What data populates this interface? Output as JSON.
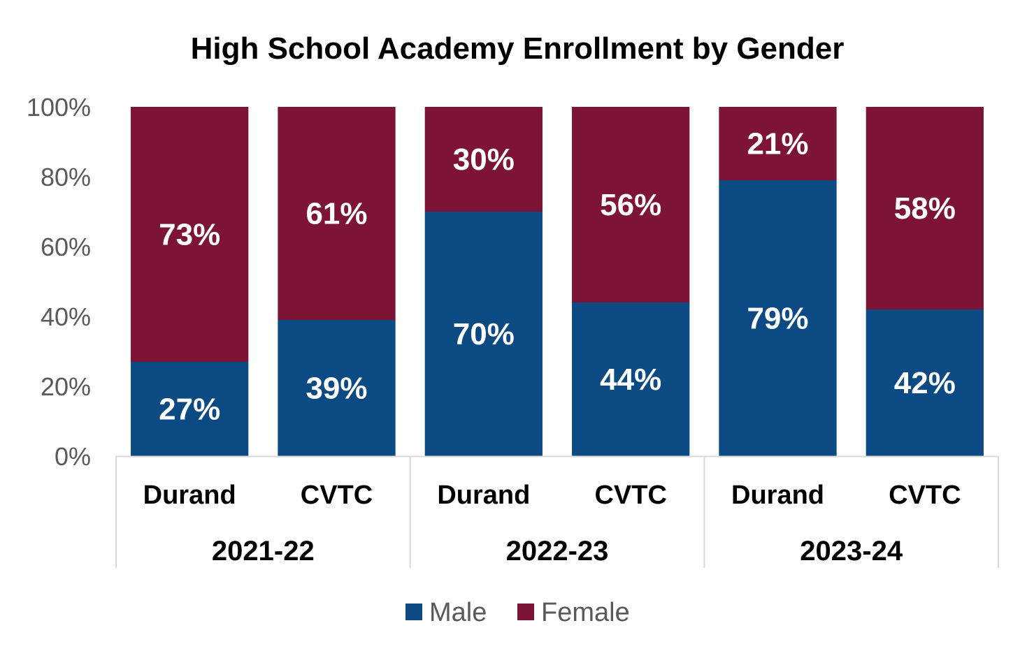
{
  "chart_data": {
    "type": "bar",
    "stacked": true,
    "title": "High School Academy Enrollment by Gender",
    "xlabel": "",
    "ylabel": "",
    "ylim": [
      0,
      100
    ],
    "y_ticks": [
      "0%",
      "20%",
      "40%",
      "60%",
      "80%",
      "100%"
    ],
    "y_tick_values": [
      0,
      20,
      40,
      60,
      80,
      100
    ],
    "grid": false,
    "legend_position": "bottom",
    "groups": [
      {
        "label": "2021-22",
        "categories": [
          "Durand",
          "CVTC"
        ]
      },
      {
        "label": "2022-23",
        "categories": [
          "Durand",
          "CVTC"
        ]
      },
      {
        "label": "2023-24",
        "categories": [
          "Durand",
          "CVTC"
        ]
      }
    ],
    "categories": [
      "Durand",
      "CVTC",
      "Durand",
      "CVTC",
      "Durand",
      "CVTC"
    ],
    "series": [
      {
        "name": "Male",
        "color": "#0b4a82",
        "values": [
          27,
          39,
          70,
          44,
          79,
          42
        ],
        "labels": [
          "27%",
          "39%",
          "70%",
          "44%",
          "79%",
          "42%"
        ]
      },
      {
        "name": "Female",
        "color": "#7d1435",
        "values": [
          73,
          61,
          30,
          56,
          21,
          58
        ],
        "labels": [
          "73%",
          "61%",
          "30%",
          "56%",
          "21%",
          "58%"
        ]
      }
    ]
  }
}
